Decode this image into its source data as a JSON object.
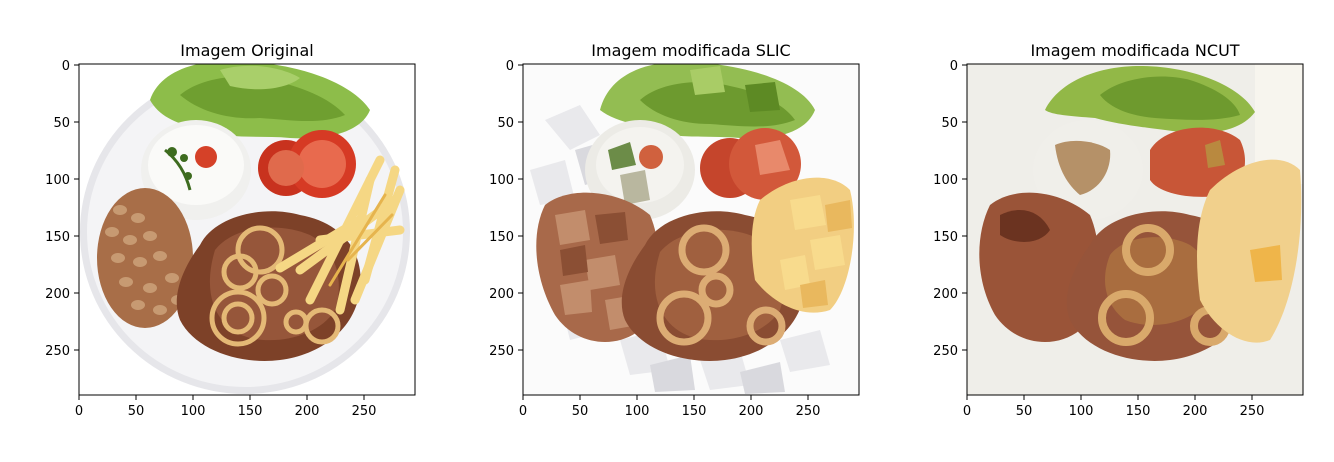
{
  "panels": [
    {
      "title": "Imagem Original",
      "x_ticks": [
        "0",
        "50",
        "100",
        "150",
        "200",
        "250"
      ],
      "y_ticks": [
        "0",
        "50",
        "100",
        "150",
        "200",
        "250"
      ],
      "description": "original photo: white plate with lettuce, rice, tomato, beans, steak, onion rings and fries"
    },
    {
      "title": "Imagem modificada SLIC",
      "x_ticks": [
        "0",
        "50",
        "100",
        "150",
        "200",
        "250"
      ],
      "y_ticks": [
        "0",
        "50",
        "100",
        "150",
        "200",
        "250"
      ],
      "description": "SLIC superpixel segmentation with mean colors"
    },
    {
      "title": "Imagem modificada NCUT",
      "x_ticks": [
        "0",
        "50",
        "100",
        "150",
        "200",
        "250"
      ],
      "y_ticks": [
        "0",
        "50",
        "100",
        "150",
        "200",
        "250"
      ],
      "description": "normalized cut segmentation with mean colors"
    }
  ],
  "axis_range": {
    "x": [
      0,
      295
    ],
    "y": [
      0,
      290
    ]
  },
  "colors": {
    "lettuce": "#8db84a",
    "lettuce_dark": "#5e8f2a",
    "rice": "#f2f2f0",
    "tomato": "#c9452e",
    "beans": "#b07a55",
    "steak": "#8a4a30",
    "onion": "#d8a66a",
    "fries": "#f3cf7a",
    "plate": "#ececee",
    "slic_steak": "#9a5a3e",
    "ncut_bg": "#efeee9",
    "ncut_steak": "#98553a"
  }
}
